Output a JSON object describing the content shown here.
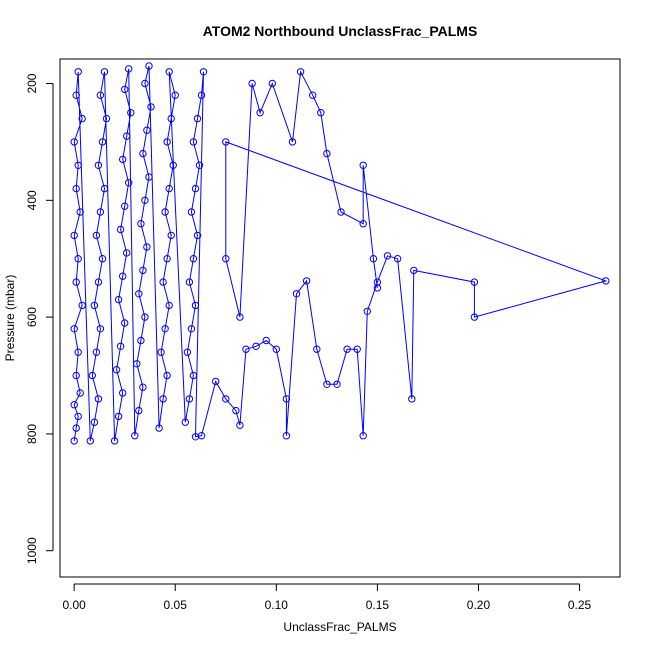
{
  "chart_data": {
    "type": "scatter",
    "title": "ATOM2 Northbound UnclassFrac_PALMS",
    "xlabel": "UnclassFrac_PALMS",
    "ylabel": "Pressure (mbar)",
    "xlim": [
      -0.007,
      0.27
    ],
    "ylim": [
      1045,
      158
    ],
    "y_reversed": true,
    "x_ticks": [
      0.0,
      0.05,
      0.1,
      0.15,
      0.2,
      0.25
    ],
    "x_tick_labels": [
      "0.00",
      "0.05",
      "0.10",
      "0.15",
      "0.20",
      "0.25"
    ],
    "y_ticks": [
      200,
      400,
      600,
      800,
      1000
    ],
    "y_tick_labels": [
      "200",
      "400",
      "600",
      "800",
      "1000"
    ],
    "grid": false,
    "legend": "none",
    "marker": "open-circle",
    "connected_by_lines": true,
    "color": "#0000ff",
    "series": [
      {
        "points": [
          [
            0.0,
            812
          ],
          [
            0.001,
            790
          ],
          [
            0.002,
            770
          ],
          [
            0.0,
            750
          ],
          [
            0.003,
            730
          ],
          [
            0.001,
            700
          ],
          [
            0.002,
            660
          ],
          [
            0.0,
            620
          ],
          [
            0.004,
            580
          ],
          [
            0.001,
            540
          ],
          [
            0.002,
            500
          ],
          [
            0.0,
            460
          ],
          [
            0.003,
            420
          ],
          [
            0.001,
            380
          ],
          [
            0.002,
            340
          ],
          [
            0.0,
            300
          ],
          [
            0.004,
            260
          ],
          [
            0.001,
            220
          ],
          [
            0.002,
            180
          ],
          [
            0.008,
            812
          ],
          [
            0.01,
            780
          ],
          [
            0.012,
            740
          ],
          [
            0.009,
            700
          ],
          [
            0.011,
            660
          ],
          [
            0.013,
            620
          ],
          [
            0.01,
            580
          ],
          [
            0.012,
            540
          ],
          [
            0.014,
            500
          ],
          [
            0.011,
            460
          ],
          [
            0.013,
            420
          ],
          [
            0.015,
            380
          ],
          [
            0.012,
            340
          ],
          [
            0.014,
            300
          ],
          [
            0.016,
            260
          ],
          [
            0.013,
            220
          ],
          [
            0.015,
            180
          ],
          [
            0.02,
            812
          ],
          [
            0.022,
            770
          ],
          [
            0.024,
            730
          ],
          [
            0.021,
            690
          ],
          [
            0.023,
            650
          ],
          [
            0.025,
            610
          ],
          [
            0.022,
            570
          ],
          [
            0.024,
            530
          ],
          [
            0.026,
            490
          ],
          [
            0.023,
            450
          ],
          [
            0.025,
            410
          ],
          [
            0.027,
            370
          ],
          [
            0.024,
            330
          ],
          [
            0.026,
            290
          ],
          [
            0.028,
            250
          ],
          [
            0.025,
            210
          ],
          [
            0.027,
            175
          ],
          [
            0.03,
            803
          ],
          [
            0.032,
            760
          ],
          [
            0.034,
            720
          ],
          [
            0.031,
            680
          ],
          [
            0.033,
            640
          ],
          [
            0.035,
            600
          ],
          [
            0.032,
            560
          ],
          [
            0.034,
            520
          ],
          [
            0.036,
            480
          ],
          [
            0.033,
            440
          ],
          [
            0.035,
            400
          ],
          [
            0.037,
            360
          ],
          [
            0.034,
            320
          ],
          [
            0.036,
            280
          ],
          [
            0.038,
            240
          ],
          [
            0.035,
            200
          ],
          [
            0.037,
            170
          ],
          [
            0.042,
            790
          ],
          [
            0.044,
            740
          ],
          [
            0.046,
            700
          ],
          [
            0.043,
            660
          ],
          [
            0.045,
            620
          ],
          [
            0.047,
            580
          ],
          [
            0.044,
            540
          ],
          [
            0.046,
            500
          ],
          [
            0.048,
            460
          ],
          [
            0.045,
            420
          ],
          [
            0.047,
            380
          ],
          [
            0.049,
            340
          ],
          [
            0.046,
            300
          ],
          [
            0.048,
            260
          ],
          [
            0.05,
            220
          ],
          [
            0.047,
            180
          ],
          [
            0.055,
            780
          ],
          [
            0.057,
            740
          ],
          [
            0.059,
            700
          ],
          [
            0.056,
            660
          ],
          [
            0.058,
            620
          ],
          [
            0.06,
            580
          ],
          [
            0.057,
            540
          ],
          [
            0.059,
            500
          ],
          [
            0.061,
            460
          ],
          [
            0.058,
            420
          ],
          [
            0.06,
            380
          ],
          [
            0.062,
            340
          ],
          [
            0.059,
            300
          ],
          [
            0.061,
            260
          ],
          [
            0.063,
            220
          ],
          [
            0.064,
            180
          ],
          [
            0.06,
            805
          ],
          [
            0.063,
            803
          ],
          [
            0.07,
            710
          ],
          [
            0.075,
            740
          ],
          [
            0.08,
            760
          ],
          [
            0.082,
            785
          ],
          [
            0.085,
            655
          ],
          [
            0.09,
            650
          ],
          [
            0.095,
            640
          ],
          [
            0.1,
            655
          ],
          [
            0.105,
            740
          ],
          [
            0.105,
            803
          ],
          [
            0.11,
            560
          ],
          [
            0.115,
            538
          ],
          [
            0.12,
            655
          ],
          [
            0.125,
            715
          ],
          [
            0.13,
            715
          ],
          [
            0.135,
            655
          ],
          [
            0.14,
            655
          ],
          [
            0.143,
            803
          ],
          [
            0.145,
            590
          ],
          [
            0.15,
            540
          ],
          [
            0.155,
            495
          ],
          [
            0.16,
            500
          ],
          [
            0.167,
            740
          ],
          [
            0.168,
            520
          ],
          [
            0.198,
            540
          ],
          [
            0.198,
            600
          ],
          [
            0.263,
            538
          ],
          [
            0.075,
            300
          ],
          [
            0.075,
            500
          ],
          [
            0.082,
            600
          ],
          [
            0.088,
            200
          ],
          [
            0.092,
            250
          ],
          [
            0.098,
            200
          ],
          [
            0.108,
            300
          ],
          [
            0.112,
            180
          ],
          [
            0.118,
            220
          ],
          [
            0.122,
            250
          ],
          [
            0.125,
            320
          ],
          [
            0.132,
            420
          ],
          [
            0.143,
            440
          ],
          [
            0.143,
            340
          ],
          [
            0.148,
            500
          ],
          [
            0.15,
            550
          ]
        ]
      }
    ]
  }
}
